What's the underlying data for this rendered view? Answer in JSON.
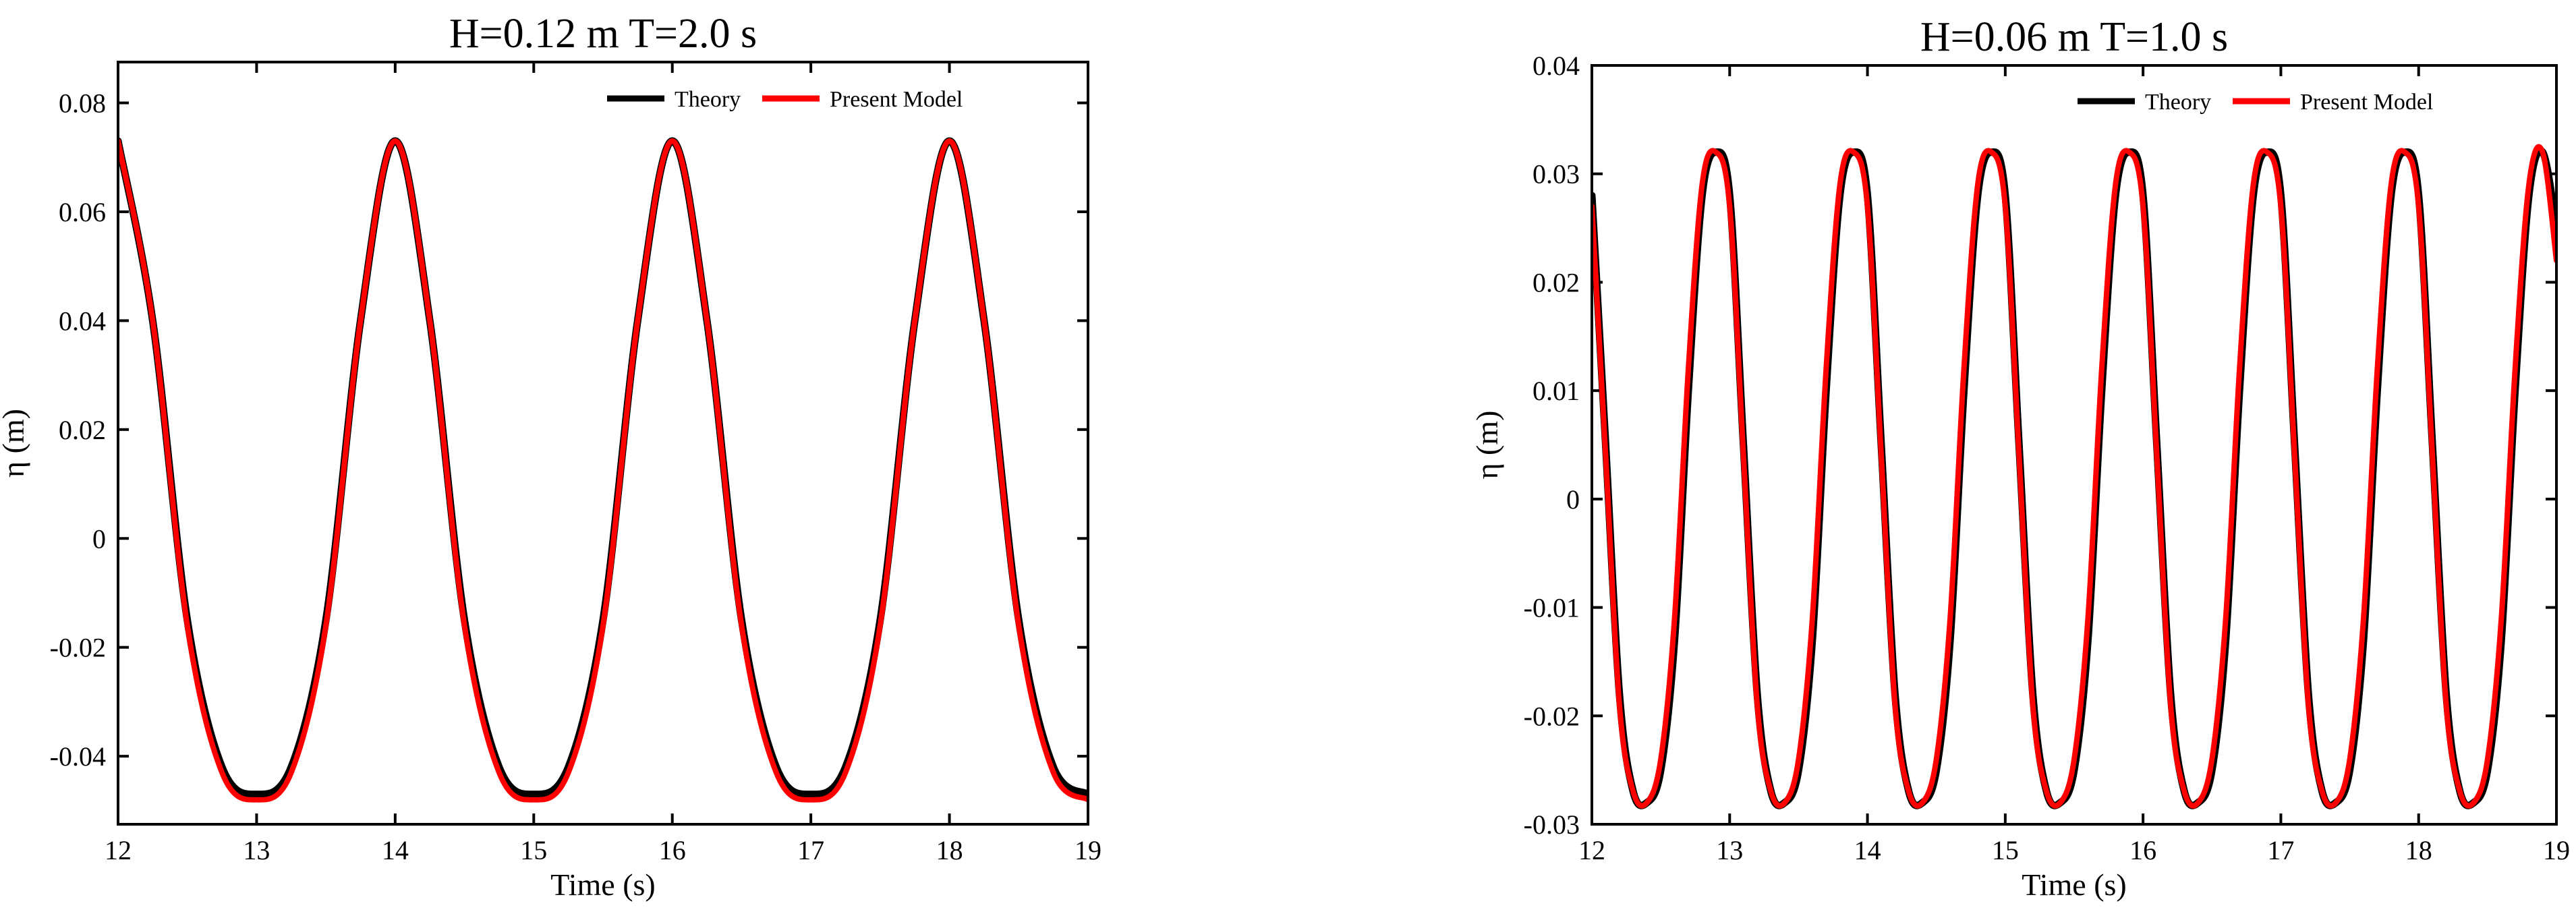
{
  "chart_data": [
    {
      "type": "line",
      "title": "H=0.12 m T=2.0 s",
      "xlabel": "Time (s)",
      "ylabel": "η (m)",
      "xlim": [
        12,
        19
      ],
      "ylim": [
        -0.0525,
        0.0875
      ],
      "xticks": [
        12,
        13,
        14,
        15,
        16,
        17,
        18,
        19
      ],
      "xtick_labels": [
        "12",
        "13",
        "14",
        "15",
        "16",
        "17",
        "18",
        "19"
      ],
      "yticks": [
        -0.04,
        -0.02,
        0,
        0.02,
        0.04,
        0.06,
        0.08
      ],
      "ytick_labels": [
        "-0.04",
        "-0.02",
        "0",
        "0.02",
        "0.04",
        "0.06",
        "0.08"
      ],
      "grid": false,
      "legend": "top-right",
      "series": [
        {
          "name": "Theory",
          "color": "#000000",
          "x": [
            12.0,
            12.25,
            12.5,
            12.75,
            13.0,
            13.25,
            13.5,
            13.75,
            14.0,
            14.25,
            14.5,
            14.75,
            15.0,
            15.25,
            15.5,
            15.75,
            16.0,
            16.25,
            16.5,
            16.75,
            17.0,
            17.25,
            17.5,
            17.75,
            18.0,
            18.25,
            18.5,
            18.75,
            19.0
          ],
          "y": [
            0.073,
            0.04,
            -0.015,
            -0.042,
            -0.047,
            -0.042,
            -0.015,
            0.04,
            0.073,
            0.04,
            -0.015,
            -0.042,
            -0.047,
            -0.042,
            -0.015,
            0.04,
            0.073,
            0.04,
            -0.015,
            -0.042,
            -0.047,
            -0.042,
            -0.015,
            0.04,
            0.073,
            0.04,
            -0.015,
            -0.042,
            -0.047
          ]
        },
        {
          "name": "Present Model",
          "color": "#ff0000",
          "x": [
            12.0,
            12.25,
            12.5,
            12.75,
            13.0,
            13.25,
            13.5,
            13.75,
            14.0,
            14.25,
            14.5,
            14.75,
            15.0,
            15.25,
            15.5,
            15.75,
            16.0,
            16.25,
            16.5,
            16.75,
            17.0,
            17.25,
            17.5,
            17.75,
            18.0,
            18.25,
            18.5,
            18.75,
            19.0
          ],
          "y": [
            0.073,
            0.04,
            -0.016,
            -0.043,
            -0.048,
            -0.043,
            -0.016,
            0.04,
            0.073,
            0.04,
            -0.016,
            -0.043,
            -0.048,
            -0.043,
            -0.016,
            0.04,
            0.073,
            0.04,
            -0.016,
            -0.043,
            -0.048,
            -0.043,
            -0.016,
            0.04,
            0.073,
            0.04,
            -0.016,
            -0.043,
            -0.048
          ]
        }
      ]
    },
    {
      "type": "line",
      "title": "H=0.06 m T=1.0 s",
      "xlabel": "Time (s)",
      "ylabel": "η (m)",
      "xlim": [
        12,
        19
      ],
      "ylim": [
        -0.03,
        0.04
      ],
      "xticks": [
        12,
        13,
        14,
        15,
        16,
        17,
        18,
        19
      ],
      "xtick_labels": [
        "12",
        "13",
        "14",
        "15",
        "16",
        "17",
        "18",
        "19"
      ],
      "yticks": [
        -0.03,
        -0.02,
        -0.01,
        0,
        0.01,
        0.02,
        0.03,
        0.04
      ],
      "ytick_labels": [
        "-0.03",
        "-0.02",
        "-0.01",
        "0",
        "0.01",
        "0.02",
        "0.03",
        "0.04"
      ],
      "grid": false,
      "legend": "top-right",
      "series": [
        {
          "name": "Theory",
          "color": "#000000",
          "x": [
            12.0,
            12.1,
            12.2,
            12.3,
            12.4,
            12.5,
            12.6,
            12.7,
            12.8,
            12.9,
            13.0,
            13.1,
            13.2,
            13.3,
            13.4,
            13.5,
            13.6,
            13.7,
            13.8,
            13.9,
            14.0,
            14.1,
            14.2,
            14.3,
            14.4,
            14.5,
            14.6,
            14.7,
            14.8,
            14.9,
            15.0,
            15.1,
            15.2,
            15.3,
            15.4,
            15.5,
            15.6,
            15.7,
            15.8,
            15.9,
            16.0,
            16.1,
            16.2,
            16.3,
            16.4,
            16.5,
            16.6,
            16.7,
            16.8,
            16.9,
            17.0,
            17.1,
            17.2,
            17.3,
            17.4,
            17.5,
            17.6,
            17.7,
            17.8,
            17.9,
            18.0,
            18.1,
            18.2,
            18.3,
            18.4,
            18.5,
            18.6,
            18.7,
            18.8,
            18.9,
            19.0
          ],
          "y": [
            0.028,
            0.005,
            -0.018,
            -0.027,
            -0.028,
            -0.025,
            -0.013,
            0.01,
            0.028,
            0.032,
            0.028,
            0.005,
            -0.018,
            -0.027,
            -0.028,
            -0.025,
            -0.013,
            0.01,
            0.028,
            0.032,
            0.028,
            0.005,
            -0.018,
            -0.027,
            -0.028,
            -0.025,
            -0.013,
            0.01,
            0.028,
            0.032,
            0.028,
            0.005,
            -0.018,
            -0.027,
            -0.028,
            -0.025,
            -0.013,
            0.01,
            0.028,
            0.032,
            0.028,
            0.005,
            -0.018,
            -0.027,
            -0.028,
            -0.025,
            -0.013,
            0.01,
            0.028,
            0.032,
            0.028,
            0.005,
            -0.018,
            -0.027,
            -0.028,
            -0.025,
            -0.013,
            0.01,
            0.028,
            0.032,
            0.028,
            0.005,
            -0.018,
            -0.027,
            -0.028,
            -0.025,
            -0.013,
            0.01,
            0.028,
            0.032,
            0.025
          ]
        },
        {
          "name": "Present Model",
          "color": "#ff0000",
          "x": [
            12.0,
            12.1,
            12.2,
            12.3,
            12.4,
            12.5,
            12.6,
            12.7,
            12.8,
            12.9,
            13.0,
            13.1,
            13.2,
            13.3,
            13.4,
            13.5,
            13.6,
            13.7,
            13.8,
            13.9,
            14.0,
            14.1,
            14.2,
            14.3,
            14.4,
            14.5,
            14.6,
            14.7,
            14.8,
            14.9,
            15.0,
            15.1,
            15.2,
            15.3,
            15.4,
            15.5,
            15.6,
            15.7,
            15.8,
            15.9,
            16.0,
            16.1,
            16.2,
            16.3,
            16.4,
            16.5,
            16.6,
            16.7,
            16.8,
            16.9,
            17.0,
            17.1,
            17.2,
            17.3,
            17.4,
            17.5,
            17.6,
            17.7,
            17.8,
            17.9,
            18.0,
            18.1,
            18.2,
            18.3,
            18.4,
            18.5,
            18.6,
            18.7,
            18.8,
            18.9,
            19.0
          ],
          "y": [
            0.027,
            0.004,
            -0.019,
            -0.027,
            -0.028,
            -0.024,
            -0.011,
            0.012,
            0.029,
            0.032,
            0.027,
            0.004,
            -0.019,
            -0.027,
            -0.028,
            -0.024,
            -0.011,
            0.012,
            0.029,
            0.032,
            0.027,
            0.004,
            -0.019,
            -0.027,
            -0.028,
            -0.024,
            -0.011,
            0.012,
            0.029,
            0.032,
            0.027,
            0.004,
            -0.019,
            -0.027,
            -0.028,
            -0.024,
            -0.011,
            0.012,
            0.029,
            0.032,
            0.027,
            0.004,
            -0.019,
            -0.027,
            -0.028,
            -0.024,
            -0.011,
            0.012,
            0.029,
            0.032,
            0.027,
            0.004,
            -0.019,
            -0.027,
            -0.028,
            -0.024,
            -0.011,
            0.012,
            0.029,
            0.032,
            0.027,
            0.004,
            -0.019,
            -0.027,
            -0.028,
            -0.024,
            -0.011,
            0.012,
            0.029,
            0.032,
            0.022
          ]
        }
      ]
    }
  ]
}
